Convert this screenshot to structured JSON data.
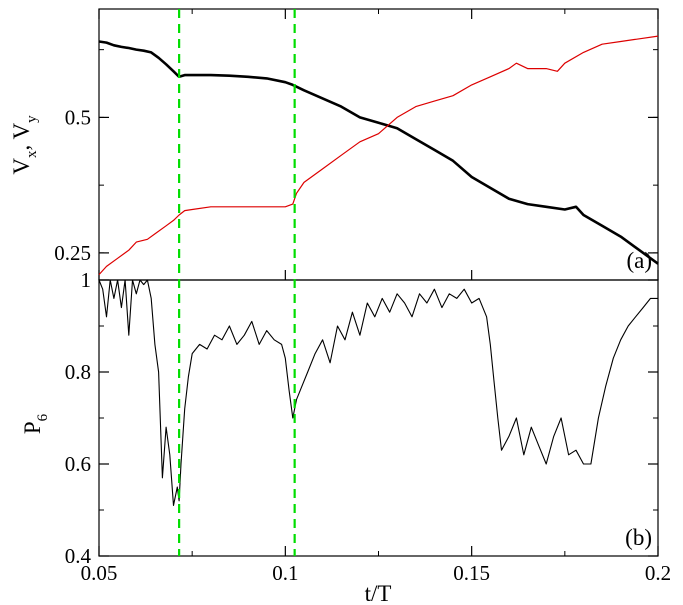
{
  "chart_data": [
    {
      "panel": "(a)",
      "type": "line",
      "ylabel_main": "V",
      "ylabel_parts": [
        {
          "text": "V",
          "sub": "x"
        },
        {
          "text": ", ",
          "sub": ""
        },
        {
          "text": "V",
          "sub": "y"
        }
      ],
      "xlim": [
        0.05,
        0.2
      ],
      "ylim": [
        0.2,
        0.7
      ],
      "y_ticks": [
        0.25,
        0.5
      ],
      "y_tick_labels": [
        "0.25",
        "0.5"
      ],
      "vlines": [
        0.0715,
        0.1025
      ],
      "vline_color": "#00dd00",
      "series": [
        {
          "color": "#000000",
          "x": [
            0.05,
            0.052,
            0.054,
            0.056,
            0.058,
            0.06,
            0.062,
            0.064,
            0.066,
            0.068,
            0.07,
            0.0715,
            0.073,
            0.075,
            0.08,
            0.085,
            0.09,
            0.095,
            0.1,
            0.102,
            0.105,
            0.11,
            0.115,
            0.12,
            0.125,
            0.13,
            0.135,
            0.14,
            0.145,
            0.15,
            0.155,
            0.16,
            0.165,
            0.17,
            0.175,
            0.178,
            0.18,
            0.185,
            0.19,
            0.195,
            0.2
          ],
          "y": [
            0.64,
            0.638,
            0.633,
            0.63,
            0.628,
            0.625,
            0.623,
            0.62,
            0.61,
            0.598,
            0.585,
            0.575,
            0.578,
            0.578,
            0.578,
            0.577,
            0.575,
            0.572,
            0.565,
            0.56,
            0.55,
            0.535,
            0.52,
            0.5,
            0.49,
            0.48,
            0.46,
            0.44,
            0.42,
            0.39,
            0.37,
            0.35,
            0.34,
            0.335,
            0.33,
            0.335,
            0.32,
            0.3,
            0.28,
            0.255,
            0.23
          ]
        },
        {
          "color": "#dd0000",
          "x": [
            0.05,
            0.052,
            0.055,
            0.058,
            0.06,
            0.063,
            0.065,
            0.068,
            0.07,
            0.0715,
            0.073,
            0.075,
            0.08,
            0.085,
            0.09,
            0.095,
            0.1,
            0.102,
            0.103,
            0.105,
            0.11,
            0.115,
            0.12,
            0.125,
            0.13,
            0.135,
            0.14,
            0.145,
            0.15,
            0.155,
            0.16,
            0.162,
            0.165,
            0.17,
            0.173,
            0.175,
            0.18,
            0.185,
            0.19,
            0.195,
            0.2
          ],
          "y": [
            0.21,
            0.225,
            0.24,
            0.255,
            0.27,
            0.275,
            0.285,
            0.3,
            0.31,
            0.32,
            0.328,
            0.33,
            0.335,
            0.335,
            0.335,
            0.335,
            0.335,
            0.34,
            0.36,
            0.38,
            0.405,
            0.43,
            0.455,
            0.47,
            0.5,
            0.52,
            0.53,
            0.54,
            0.56,
            0.575,
            0.59,
            0.6,
            0.59,
            0.59,
            0.585,
            0.6,
            0.62,
            0.635,
            0.64,
            0.645,
            0.65
          ]
        }
      ]
    },
    {
      "panel": "(b)",
      "type": "line",
      "ylabel_main": "P",
      "ylabel_sub": "6",
      "xlabel": "t/T",
      "xlim": [
        0.05,
        0.2
      ],
      "ylim": [
        0.4,
        1.0
      ],
      "x_ticks": [
        0.05,
        0.1,
        0.15,
        0.2
      ],
      "x_tick_labels": [
        "0.05",
        "0.1",
        "0.15",
        "0.2"
      ],
      "y_ticks": [
        0.4,
        0.6,
        0.8,
        1.0
      ],
      "y_tick_labels": [
        "0.4",
        "0.6",
        "0.8",
        "1"
      ],
      "vlines": [
        0.0715,
        0.1025
      ],
      "vline_color": "#00dd00",
      "series": [
        {
          "color": "#000000",
          "x": [
            0.05,
            0.051,
            0.052,
            0.053,
            0.054,
            0.055,
            0.056,
            0.057,
            0.058,
            0.059,
            0.06,
            0.061,
            0.062,
            0.063,
            0.064,
            0.065,
            0.066,
            0.067,
            0.068,
            0.069,
            0.07,
            0.071,
            0.0715,
            0.072,
            0.073,
            0.074,
            0.075,
            0.077,
            0.079,
            0.081,
            0.083,
            0.085,
            0.087,
            0.089,
            0.091,
            0.093,
            0.095,
            0.097,
            0.099,
            0.1,
            0.101,
            0.102,
            0.103,
            0.104,
            0.106,
            0.108,
            0.11,
            0.112,
            0.114,
            0.116,
            0.118,
            0.12,
            0.122,
            0.124,
            0.126,
            0.128,
            0.13,
            0.132,
            0.134,
            0.136,
            0.138,
            0.14,
            0.142,
            0.144,
            0.146,
            0.148,
            0.15,
            0.152,
            0.154,
            0.155,
            0.156,
            0.157,
            0.158,
            0.16,
            0.162,
            0.164,
            0.166,
            0.168,
            0.17,
            0.172,
            0.174,
            0.176,
            0.178,
            0.18,
            0.182,
            0.184,
            0.186,
            0.188,
            0.19,
            0.192,
            0.194,
            0.196,
            0.198,
            0.2
          ],
          "y": [
            1.0,
            0.98,
            0.92,
            1.0,
            0.96,
            1.0,
            0.94,
            1.0,
            0.88,
            1.0,
            0.97,
            1.0,
            0.99,
            1.0,
            0.96,
            0.86,
            0.8,
            0.57,
            0.68,
            0.62,
            0.51,
            0.55,
            0.52,
            0.6,
            0.72,
            0.79,
            0.84,
            0.86,
            0.85,
            0.88,
            0.87,
            0.9,
            0.86,
            0.88,
            0.91,
            0.86,
            0.89,
            0.87,
            0.86,
            0.83,
            0.76,
            0.7,
            0.74,
            0.76,
            0.8,
            0.84,
            0.87,
            0.82,
            0.9,
            0.87,
            0.93,
            0.88,
            0.95,
            0.92,
            0.96,
            0.93,
            0.97,
            0.95,
            0.92,
            0.97,
            0.95,
            0.98,
            0.94,
            0.97,
            0.96,
            0.98,
            0.95,
            0.96,
            0.92,
            0.86,
            0.78,
            0.7,
            0.63,
            0.66,
            0.7,
            0.62,
            0.68,
            0.64,
            0.6,
            0.66,
            0.7,
            0.62,
            0.63,
            0.6,
            0.6,
            0.7,
            0.77,
            0.83,
            0.87,
            0.9,
            0.92,
            0.94,
            0.96,
            0.96
          ]
        }
      ]
    }
  ],
  "panel_labels": {
    "a": "(a)",
    "b": "(b)"
  }
}
